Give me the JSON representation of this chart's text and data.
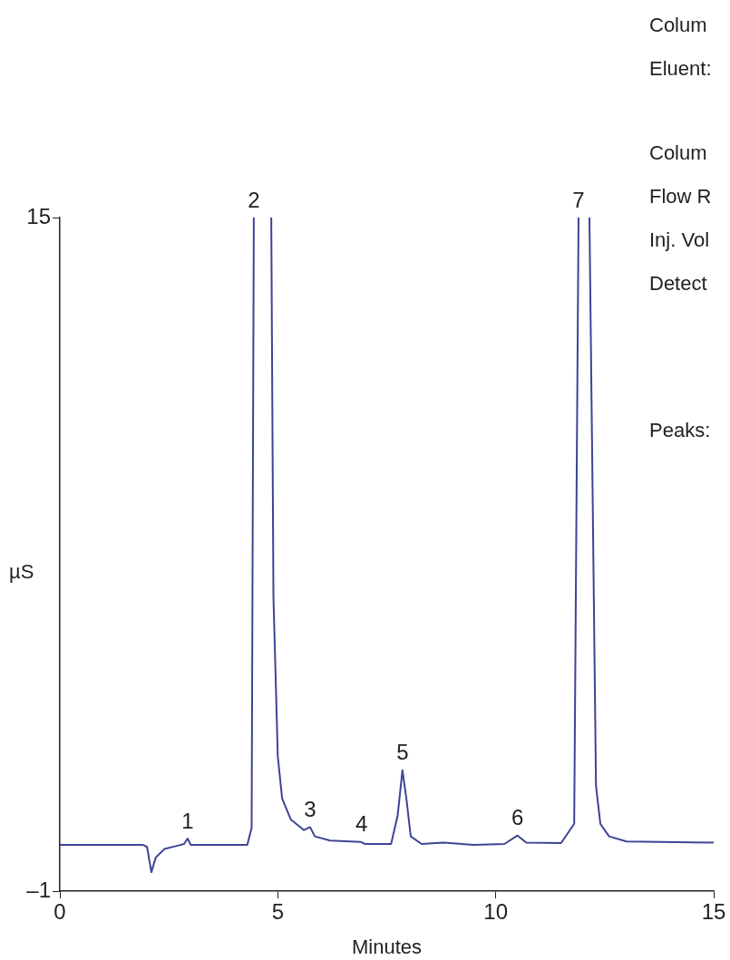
{
  "chart_data": {
    "type": "line",
    "xlabel": "Minutes",
    "ylabel": "µS",
    "xlim": [
      0,
      15
    ],
    "xticks": [
      0,
      5,
      10,
      15
    ],
    "ylim": [
      -1,
      15
    ],
    "yticks": [
      15,
      {
        "value": -1,
        "label": "–1"
      }
    ],
    "grid": false,
    "legend": false,
    "marker": "none",
    "line_style": "solid",
    "x": [
      0,
      1.9,
      2.0,
      2.1,
      2.2,
      2.4,
      2.7,
      2.85,
      2.93,
      3.0,
      4.3,
      4.4,
      4.45,
      4.65,
      4.85,
      4.9,
      5.0,
      5.1,
      5.3,
      5.6,
      5.74,
      5.85,
      6.2,
      6.9,
      7.0,
      7.6,
      7.75,
      7.86,
      7.95,
      8.05,
      8.3,
      8.8,
      9.5,
      10.2,
      10.5,
      10.7,
      11.5,
      11.8,
      11.9,
      12.02,
      12.15,
      12.3,
      12.4,
      12.6,
      13,
      15
    ],
    "series": [
      {
        "color": "#3d4496",
        "values": [
          0.1,
          0.1,
          0.05,
          -0.55,
          -0.2,
          0.0,
          0.08,
          0.12,
          0.25,
          0.1,
          0.1,
          0.5,
          15,
          null,
          15,
          6,
          2.2,
          1.2,
          0.7,
          0.45,
          0.52,
          0.3,
          0.2,
          0.17,
          0.12,
          0.12,
          0.8,
          1.87,
          1.2,
          0.3,
          0.12,
          0.15,
          0.1,
          0.12,
          0.32,
          0.15,
          0.14,
          0.6,
          15,
          null,
          15,
          1.5,
          0.6,
          0.3,
          0.18,
          0.15
        ]
      }
    ],
    "annotations": [
      {
        "text": "1",
        "x": 2.93,
        "y": 0.25
      },
      {
        "text": "2",
        "x": 4.45,
        "y": 15
      },
      {
        "text": "3",
        "x": 5.74,
        "y": 0.52
      },
      {
        "text": "4",
        "x": 6.92,
        "y": 0.17
      },
      {
        "text": "5",
        "x": 7.86,
        "y": 1.87
      },
      {
        "text": "6",
        "x": 10.5,
        "y": 0.32
      },
      {
        "text": "7",
        "x": 11.9,
        "y": 15
      },
      "Colum",
      "Eluent:",
      "Colum",
      "Flow R",
      "Inj. Vol",
      "Detect",
      "Peaks:"
    ]
  }
}
